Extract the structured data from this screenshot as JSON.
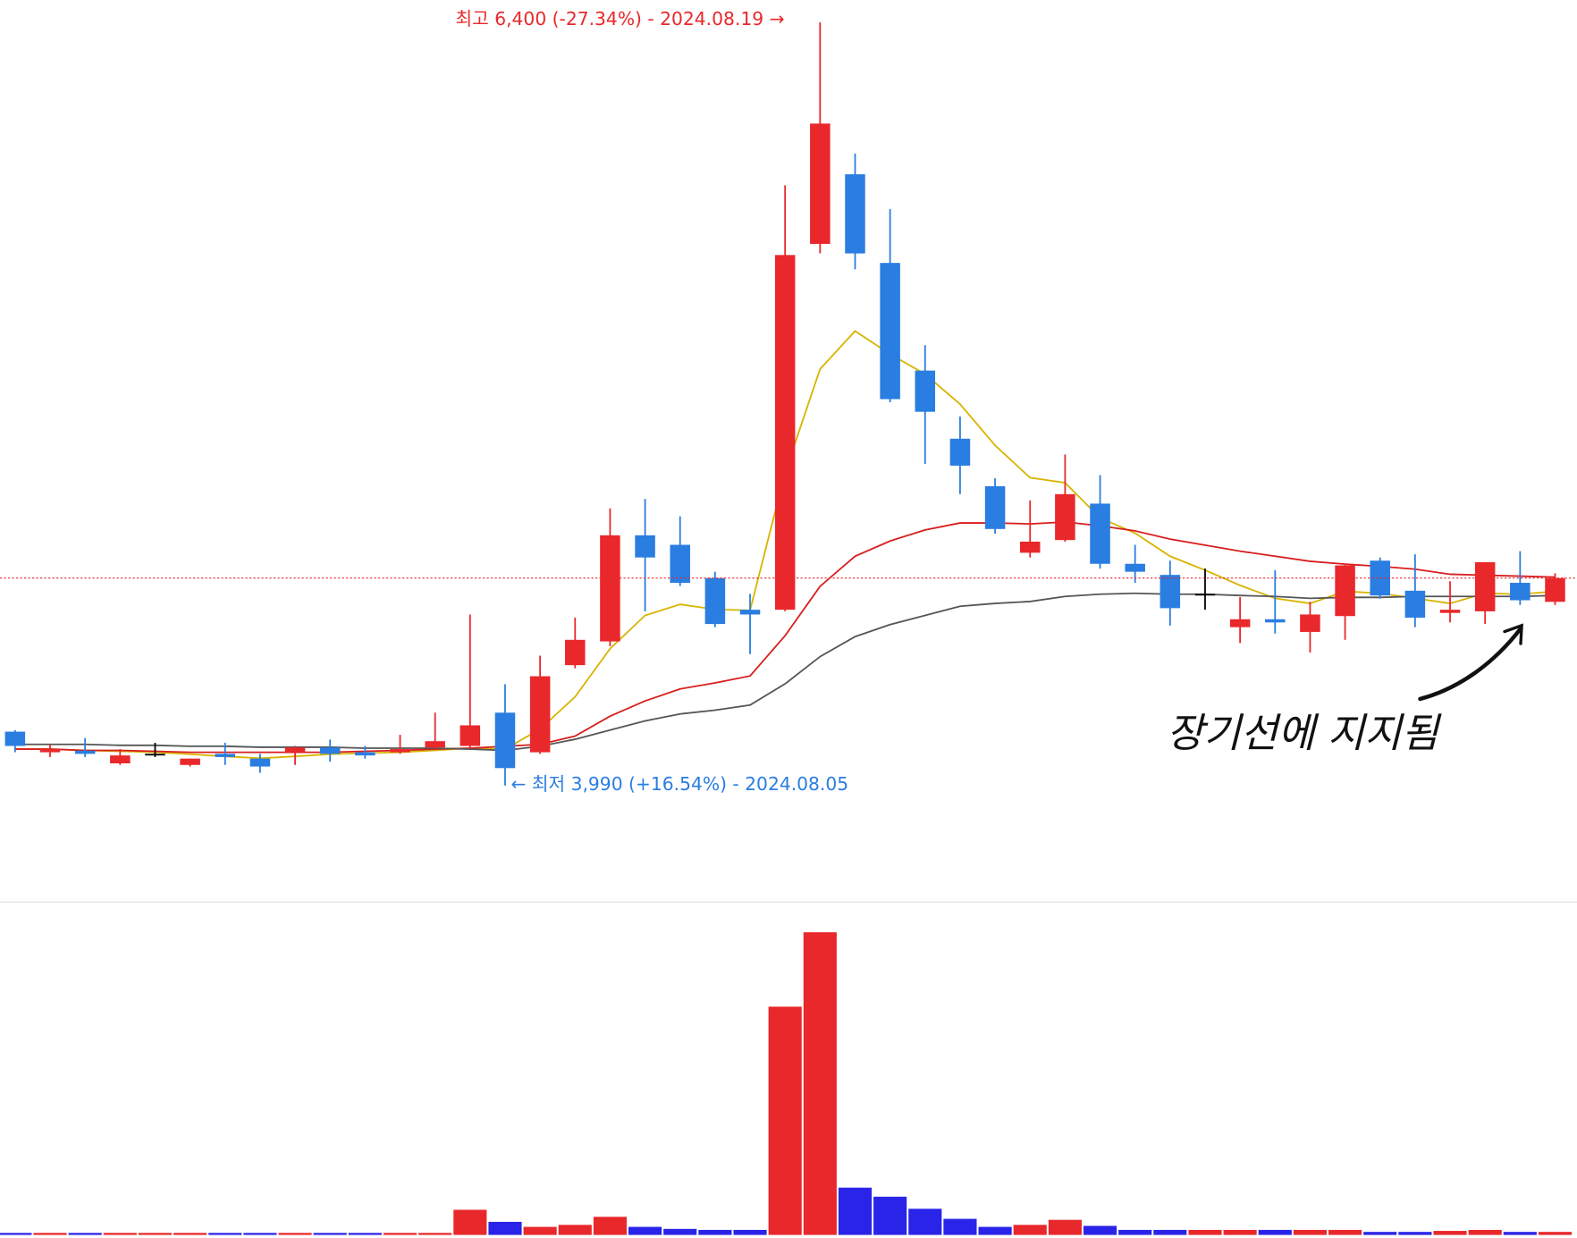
{
  "chart_data": {
    "type": "candlestick",
    "open": [
      4160,
      4095,
      4100,
      4060,
      4090,
      4055,
      4090,
      4075,
      4095,
      4110,
      4095,
      4095,
      4110,
      4115,
      4220,
      4095,
      4370,
      4445,
      4780,
      4750,
      4645,
      4545,
      4545,
      5700,
      5920,
      5640,
      5300,
      5085,
      4935,
      4725,
      4765,
      4880,
      4690,
      4655,
      4595,
      4490,
      4515,
      4475,
      4525,
      4700,
      4605,
      4535,
      4540,
      4630,
      4570
    ],
    "high": [
      4165,
      4120,
      4140,
      4105,
      4125,
      4075,
      4125,
      4090,
      4115,
      4135,
      4115,
      4150,
      4220,
      4530,
      4310,
      4400,
      4520,
      4865,
      4895,
      4840,
      4665,
      4595,
      5885,
      6400,
      5985,
      5810,
      5380,
      5155,
      4960,
      4890,
      5035,
      4970,
      4750,
      4700,
      4675,
      4585,
      4670,
      4570,
      4690,
      4710,
      4720,
      4635,
      4695,
      4730,
      4660
    ],
    "low": [
      4095,
      4080,
      4080,
      4055,
      4080,
      4050,
      4055,
      4030,
      4055,
      4065,
      4075,
      4090,
      4105,
      4105,
      3990,
      4090,
      4360,
      4430,
      4540,
      4620,
      4490,
      4405,
      4540,
      5670,
      5620,
      5200,
      5005,
      4910,
      4785,
      4710,
      4760,
      4675,
      4630,
      4495,
      4545,
      4440,
      4470,
      4410,
      4450,
      4580,
      4490,
      4505,
      4500,
      4560,
      4560
    ],
    "close": [
      4115,
      4105,
      4090,
      4085,
      4090,
      4075,
      4080,
      4050,
      4110,
      4090,
      4085,
      4105,
      4130,
      4180,
      4045,
      4335,
      4450,
      4780,
      4710,
      4630,
      4500,
      4530,
      5665,
      6080,
      5670,
      5210,
      5170,
      5000,
      4800,
      4760,
      4910,
      4690,
      4665,
      4550,
      4595,
      4515,
      4505,
      4530,
      4685,
      4590,
      4520,
      4545,
      4695,
      4575,
      4645
    ],
    "series": [
      {
        "color": "#d8b400",
        "values": [
          4105,
          4105,
          4101,
          4098,
          4095,
          4089,
          4082,
          4076,
          4082,
          4089,
          4092,
          4095,
          4101,
          4108,
          4105,
          4168,
          4270,
          4422,
          4527,
          4562,
          4546,
          4543,
          4978,
          5305,
          5425,
          5352,
          5289,
          5194,
          5064,
          4962,
          4946,
          4835,
          4787,
          4714,
          4670,
          4622,
          4581,
          4565,
          4603,
          4597,
          4581,
          4565,
          4597,
          4594,
          4603
        ]
      },
      {
        "color": "#d81e1e",
        "values": [
          4105,
          4105,
          4101,
          4101,
          4098,
          4095,
          4095,
          4095,
          4095,
          4095,
          4098,
          4101,
          4105,
          4108,
          4114,
          4120,
          4146,
          4209,
          4257,
          4295,
          4314,
          4336,
          4463,
          4619,
          4714,
          4762,
          4797,
          4819,
          4819,
          4816,
          4822,
          4810,
          4794,
          4768,
          4749,
          4730,
          4714,
          4698,
          4689,
          4682,
          4673,
          4657,
          4654,
          4651,
          4648
        ]
      },
      {
        "color": "#555555",
        "values": [
          4120,
          4120,
          4120,
          4117,
          4117,
          4114,
          4114,
          4111,
          4111,
          4111,
          4108,
          4108,
          4108,
          4105,
          4101,
          4114,
          4136,
          4165,
          4194,
          4216,
          4228,
          4244,
          4311,
          4397,
          4460,
          4498,
          4527,
          4556,
          4565,
          4571,
          4587,
          4594,
          4597,
          4594,
          4594,
          4590,
          4587,
          4581,
          4584,
          4584,
          4587,
          4587,
          4587,
          4587,
          4590
        ]
      }
    ],
    "ylim": [
      3622,
      6470
    ],
    "volume": [
      2,
      2,
      2,
      2,
      2,
      2,
      2,
      2,
      2,
      2,
      2,
      2,
      2,
      25,
      13,
      8,
      10,
      18,
      8,
      6,
      5,
      5,
      227,
      301,
      47,
      38,
      26,
      16,
      8,
      10,
      15,
      9,
      5,
      5,
      5,
      5,
      5,
      5,
      5,
      3,
      3,
      4,
      5,
      3,
      3
    ],
    "volume_ylim": [
      0,
      320
    ],
    "up_color": "#e8282b",
    "down_color": "#2a7de1",
    "doji_color": "#000000",
    "volume_down_color": "#2a24e8",
    "current_price_line": true,
    "annotations": [
      "최고 6,400 (-27.34%) - 2024.08.19 →",
      "← 최저 3,990 (+16.54%) - 2024.08.05",
      "장기선에  지지됨"
    ]
  }
}
